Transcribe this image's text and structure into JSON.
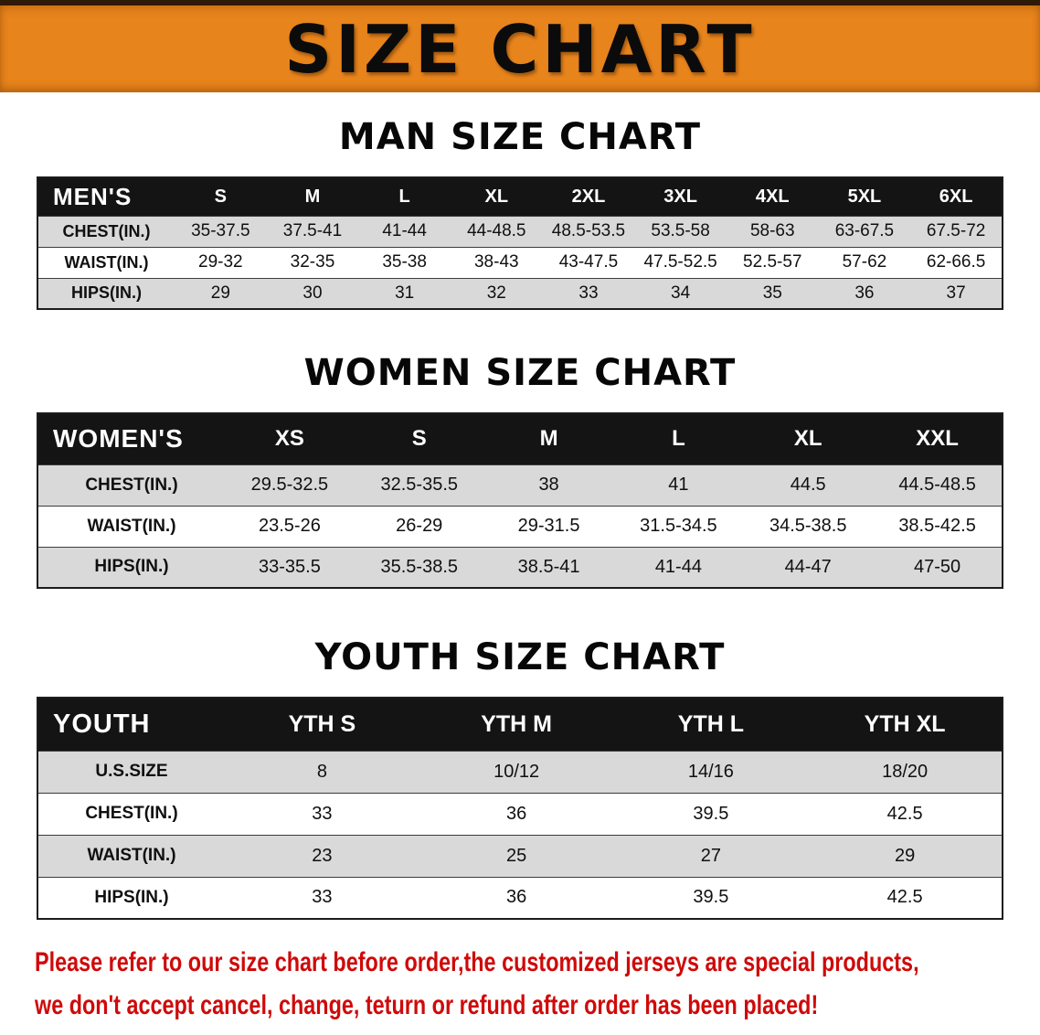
{
  "banner": {
    "title": "SIZE CHART"
  },
  "colors": {
    "banner_orange": "#e8841c",
    "table_header_black": "#141414",
    "row_stripe_gray": "#d9d9d9",
    "note_red": "#cf0a0a"
  },
  "chart_data": [
    {
      "type": "table",
      "heading": "MAN SIZE CHART",
      "corner_label": "MEN'S",
      "columns": [
        "S",
        "M",
        "L",
        "XL",
        "2XL",
        "3XL",
        "4XL",
        "5XL",
        "6XL"
      ],
      "rows": [
        {
          "label": "CHEST(IN.)",
          "values": [
            "35-37.5",
            "37.5-41",
            "41-44",
            "44-48.5",
            "48.5-53.5",
            "53.5-58",
            "58-63",
            "63-67.5",
            "67.5-72"
          ]
        },
        {
          "label": "WAIST(IN.)",
          "values": [
            "29-32",
            "32-35",
            "35-38",
            "38-43",
            "43-47.5",
            "47.5-52.5",
            "52.5-57",
            "57-62",
            "62-66.5"
          ]
        },
        {
          "label": "HIPS(IN.)",
          "values": [
            "29",
            "30",
            "31",
            "32",
            "33",
            "34",
            "35",
            "36",
            "37"
          ]
        }
      ]
    },
    {
      "type": "table",
      "heading": "WOMEN SIZE CHART",
      "corner_label": "WOMEN'S",
      "columns": [
        "XS",
        "S",
        "M",
        "L",
        "XL",
        "XXL"
      ],
      "rows": [
        {
          "label": "CHEST(IN.)",
          "values": [
            "29.5-32.5",
            "32.5-35.5",
            "38",
            "41",
            "44.5",
            "44.5-48.5"
          ]
        },
        {
          "label": "WAIST(IN.)",
          "values": [
            "23.5-26",
            "26-29",
            "29-31.5",
            "31.5-34.5",
            "34.5-38.5",
            "38.5-42.5"
          ]
        },
        {
          "label": "HIPS(IN.)",
          "values": [
            "33-35.5",
            "35.5-38.5",
            "38.5-41",
            "41-44",
            "44-47",
            "47-50"
          ]
        }
      ]
    },
    {
      "type": "table",
      "heading": "YOUTH SIZE CHART",
      "corner_label": "YOUTH",
      "columns": [
        "YTH S",
        "YTH M",
        "YTH L",
        "YTH XL"
      ],
      "rows": [
        {
          "label": "U.S.SIZE",
          "values": [
            "8",
            "10/12",
            "14/16",
            "18/20"
          ]
        },
        {
          "label": "CHEST(IN.)",
          "values": [
            "33",
            "36",
            "39.5",
            "42.5"
          ]
        },
        {
          "label": "WAIST(IN.)",
          "values": [
            "23",
            "25",
            "27",
            "29"
          ]
        },
        {
          "label": "HIPS(IN.)",
          "values": [
            "33",
            "36",
            "39.5",
            "42.5"
          ]
        }
      ]
    }
  ],
  "note": {
    "line1": "Please refer to our size chart before order,the customized jerseys are special products,",
    "line2": "we don't accept cancel, change, teturn or refund after order has been placed!"
  }
}
